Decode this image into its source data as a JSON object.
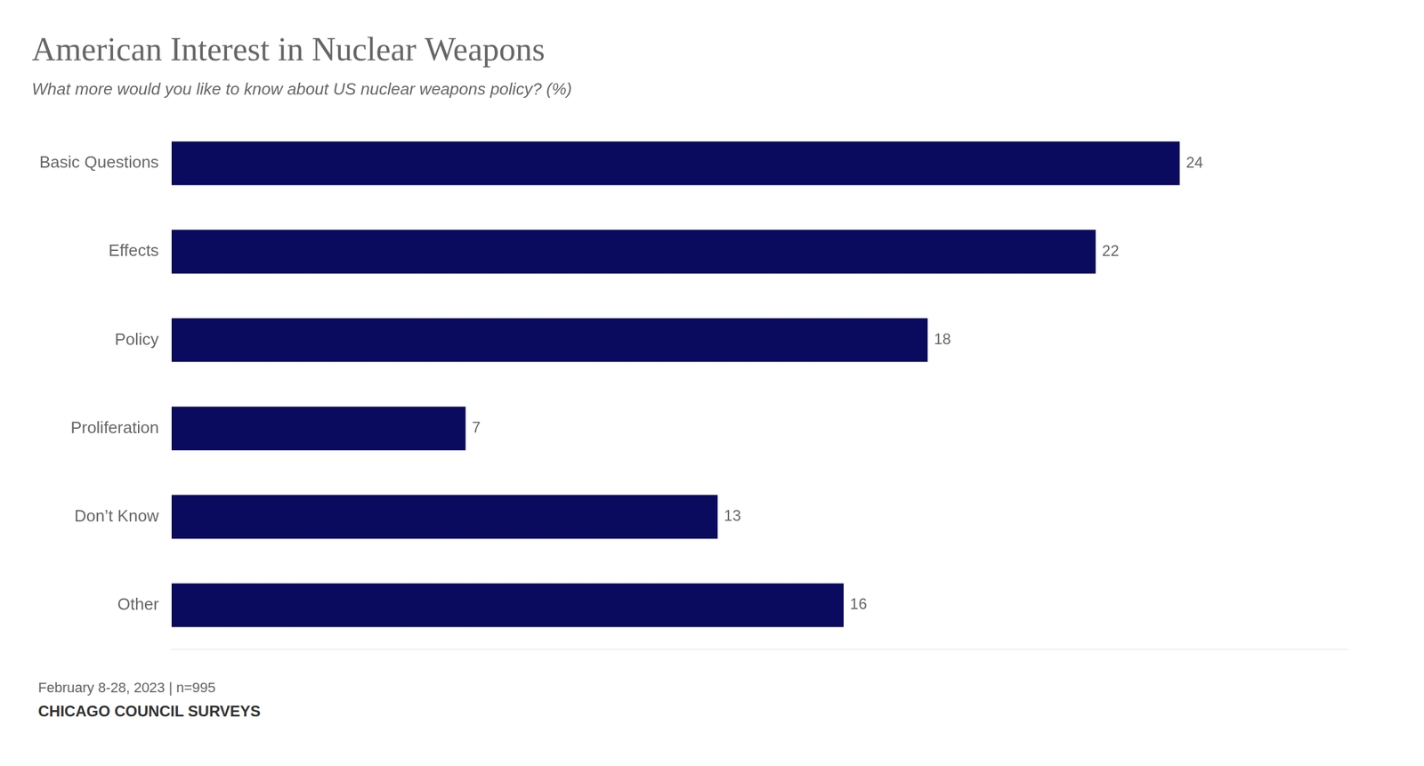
{
  "chart_data": {
    "type": "bar",
    "orientation": "horizontal",
    "title": "American Interest in Nuclear Weapons",
    "subtitle": "What more would you like to know about US nuclear weapons policy? (%)",
    "categories": [
      "Basic Questions",
      "Effects",
      "Policy",
      "Proliferation",
      "Don’t Know",
      "Other"
    ],
    "values": [
      24,
      22,
      18,
      7,
      13,
      16
    ],
    "color": "#0a0a5e",
    "xlim": [
      0,
      28
    ],
    "grid": false,
    "data_labels": true,
    "tick_labels": "y",
    "annotations": [
      "February 8-28, 2023 | n=995",
      "CHICAGO COUNCIL SURVEYS"
    ]
  }
}
